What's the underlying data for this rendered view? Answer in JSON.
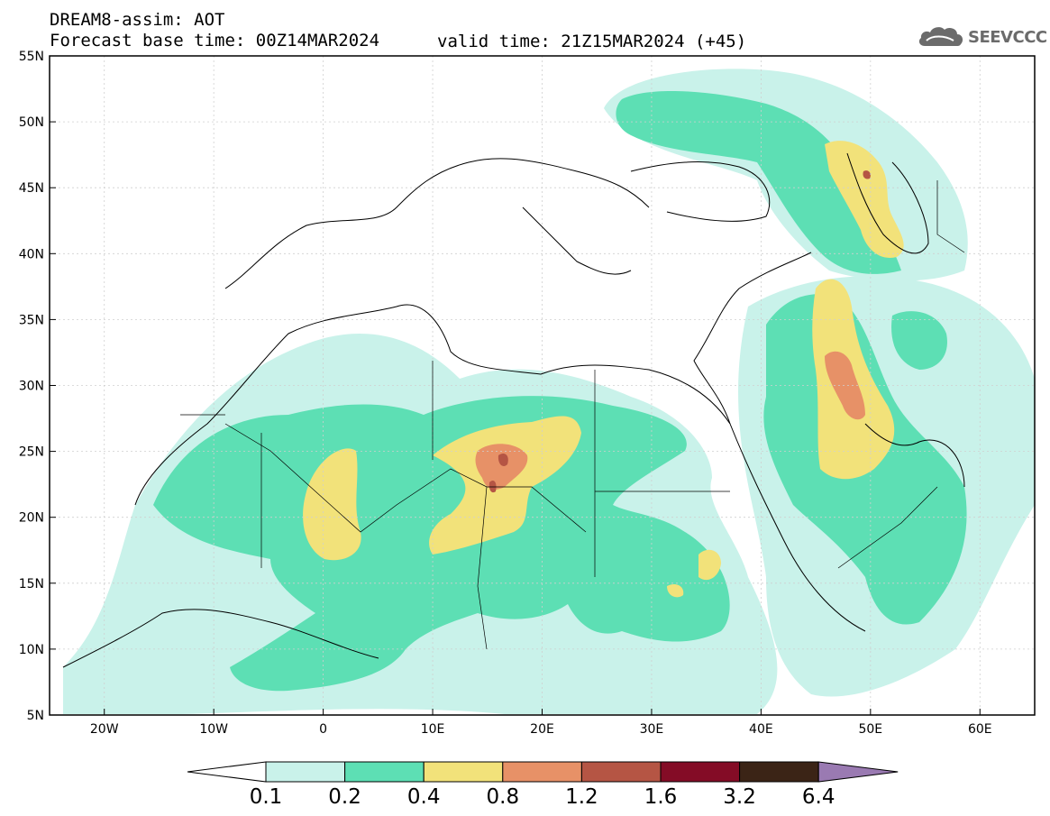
{
  "header": {
    "title": "DREAM8-assim: AOT",
    "base_time": "Forecast base time: 00Z14MAR2024",
    "valid_time": "valid time: 21Z15MAR2024 (+45)"
  },
  "logo": {
    "text": "SEEVCCC",
    "icon": "cloud-icon"
  },
  "map": {
    "lon_ticks": [
      "20W",
      "10W",
      "0",
      "10E",
      "20E",
      "30E",
      "40E",
      "50E",
      "60E"
    ],
    "lat_ticks": [
      "55N",
      "50N",
      "45N",
      "40N",
      "35N",
      "30N",
      "25N",
      "20N",
      "15N",
      "10N",
      "5N"
    ],
    "extent": {
      "lon_min": -25,
      "lon_max": 65,
      "lat_min": 5,
      "lat_max": 55
    }
  },
  "colorbar": {
    "labels": [
      "0.1",
      "0.2",
      "0.4",
      "0.8",
      "1.2",
      "1.6",
      "3.2",
      "6.4"
    ],
    "colors": [
      "#ffffff",
      "#c9f2ea",
      "#5ddfb4",
      "#f2e27a",
      "#e79167",
      "#b55544",
      "#840c26",
      "#3b2416",
      "#9a7ab2"
    ]
  }
}
